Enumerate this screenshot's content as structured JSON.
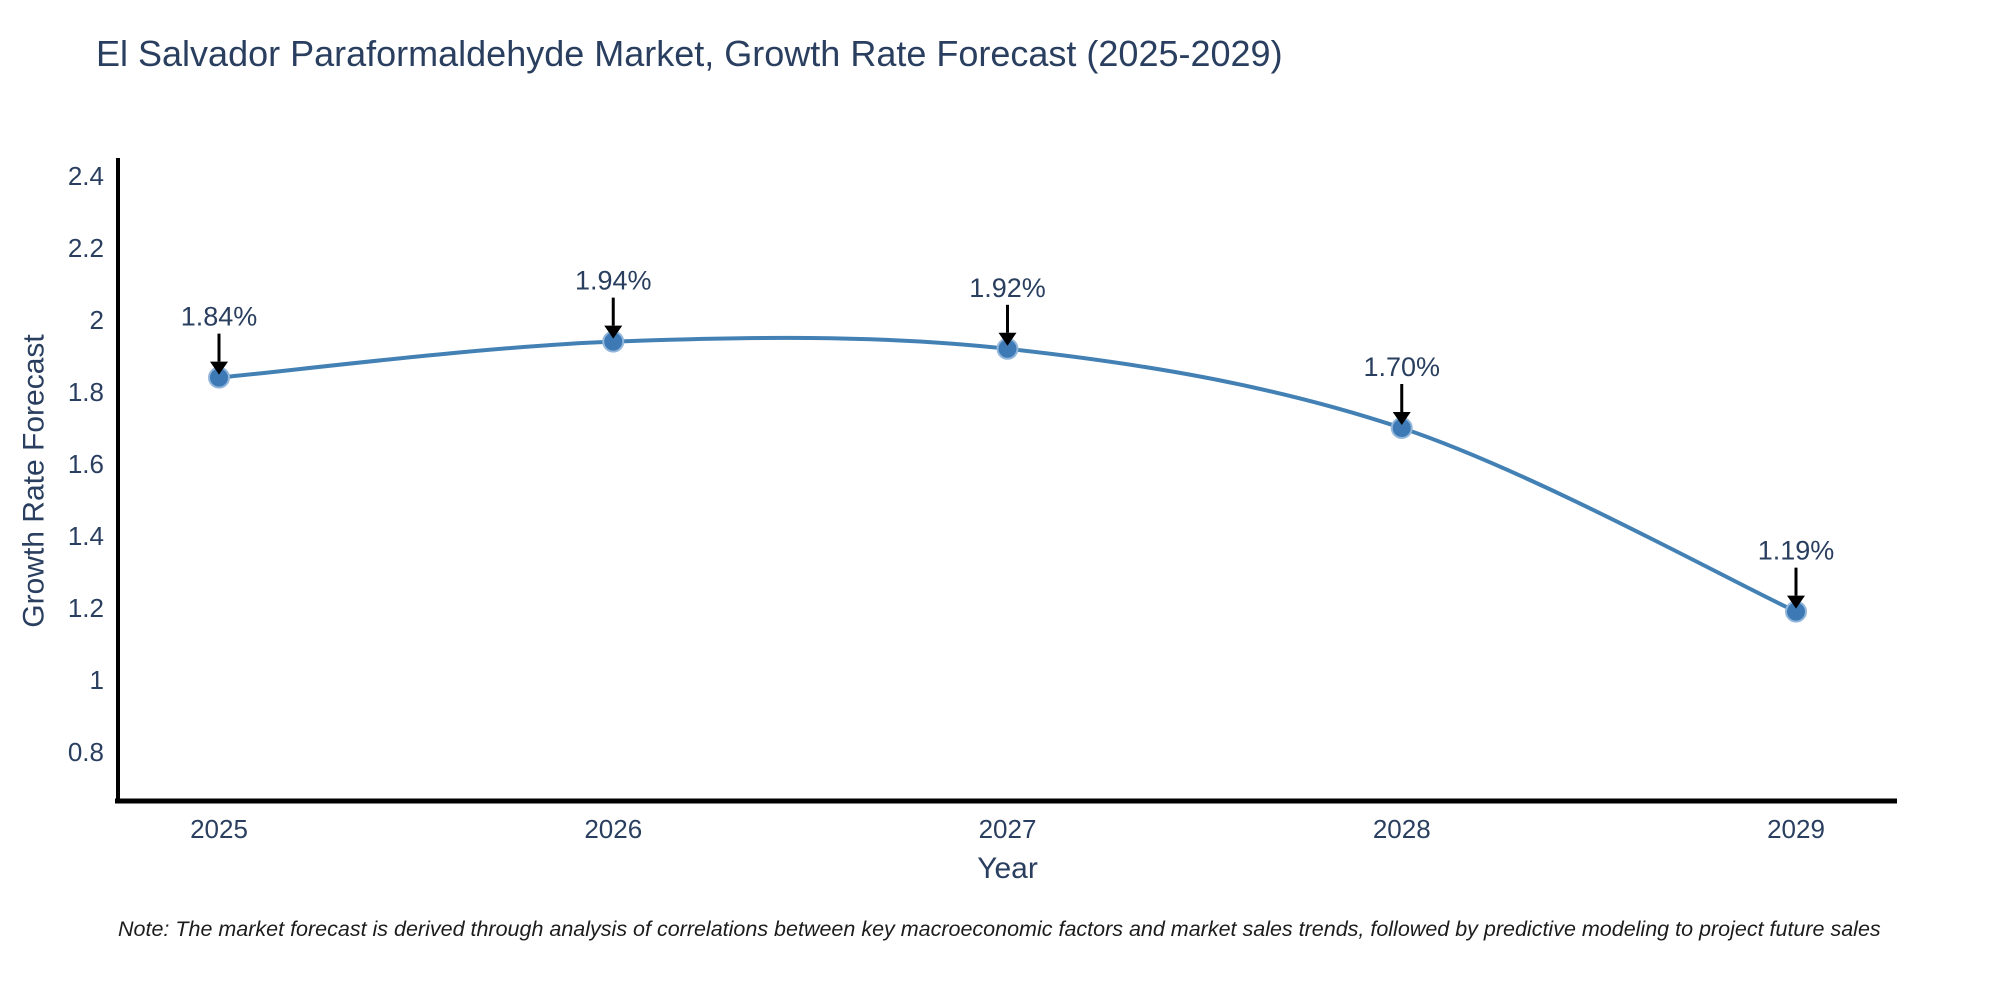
{
  "title": "El Salvador Paraformaldehyde Market, Growth Rate Forecast (2025-2029)",
  "note": "Note: The market forecast is derived through analysis of correlations between key macroeconomic factors and market sales trends, followed by predictive modeling to project future sales",
  "chart_data": {
    "type": "line",
    "line_shape": "spline",
    "title": "El Salvador Paraformaldehyde Market, Growth Rate Forecast (2025-2029)",
    "xlabel": "Year",
    "ylabel": "Growth Rate Forecast",
    "x": [
      "2025",
      "2026",
      "2027",
      "2028",
      "2029"
    ],
    "values": [
      1.84,
      1.94,
      1.92,
      1.7,
      1.19
    ],
    "point_labels": [
      "1.84%",
      "1.94%",
      "1.92%",
      "1.70%",
      "1.19%"
    ],
    "ylim": [
      0.664,
      2.45
    ],
    "yticks": [
      0.8,
      1.0,
      1.2,
      1.4,
      1.6,
      1.8,
      2.0,
      2.2,
      2.4
    ],
    "ytick_labels": [
      "0.8",
      "1",
      "1.2",
      "1.4",
      "1.6",
      "1.8",
      "2",
      "2.2",
      "2.4"
    ],
    "grid": false,
    "legend": "none",
    "colors": {
      "line": "#4381b5",
      "marker": "#3d7ab5",
      "marker_halo": "#93b7db",
      "annotation_arrow": "#000000",
      "axis": "#000000",
      "text": "#2a3f5f",
      "note_text": "#1c1c1c",
      "background": "#ffffff"
    }
  }
}
